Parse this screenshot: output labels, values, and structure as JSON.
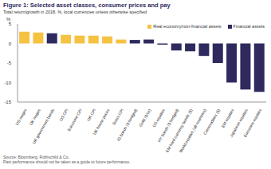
{
  "chart_data": {
    "type": "bar",
    "title": "Figure 1: Selected asset classes, consumer prices and pay",
    "subtitle": "Total return/growth in 2018, %, local currencies unless otherwise specified",
    "ylabel": "%",
    "categories": [
      "US wages",
      "UK wages",
      "UK government bonds",
      "US CPI",
      "Eurozone CPI",
      "UK CPI",
      "UK house prices",
      "Swiss CPI",
      "IG bonds ($ hedged)",
      "Gold ($/oz)",
      "US equities",
      "HY bonds ($ hedged)",
      "EM hard currency bonds ($)",
      "World equities (all countries)",
      "Commodities ($)",
      "EM equities",
      "Japanese equities",
      "Eurozone equities"
    ],
    "values": [
      3.0,
      2.8,
      2.6,
      2.2,
      2.0,
      2.0,
      1.8,
      1.0,
      0.9,
      1.0,
      -0.3,
      -1.8,
      -2.0,
      -3.2,
      -5.0,
      -10.0,
      -11.8,
      -12.4
    ],
    "colors": [
      "#f5c242",
      "#f5c242",
      "#2e2a5e",
      "#f5c242",
      "#f5c242",
      "#f5c242",
      "#f5c242",
      "#f5c242",
      "#2e2a5e",
      "#2e2a5e",
      "#2e2a5e",
      "#2e2a5e",
      "#2e2a5e",
      "#2e2a5e",
      "#2e2a5e",
      "#2e2a5e",
      "#2e2a5e",
      "#2e2a5e"
    ],
    "legend_items": [
      {
        "name": "Real economy/non-financial assets",
        "color": "#f5c242"
      },
      {
        "name": "Financial assets",
        "color": "#2e2a5e"
      }
    ],
    "legend": "top right",
    "ylim": [
      -15,
      5
    ],
    "yticks": [
      -15,
      -10,
      -5,
      0,
      5
    ],
    "grid": false,
    "annotations": [
      "Source: Bloomberg, Rothschild & Co.",
      "Past performance should not be taken as a guide to future performance."
    ]
  }
}
